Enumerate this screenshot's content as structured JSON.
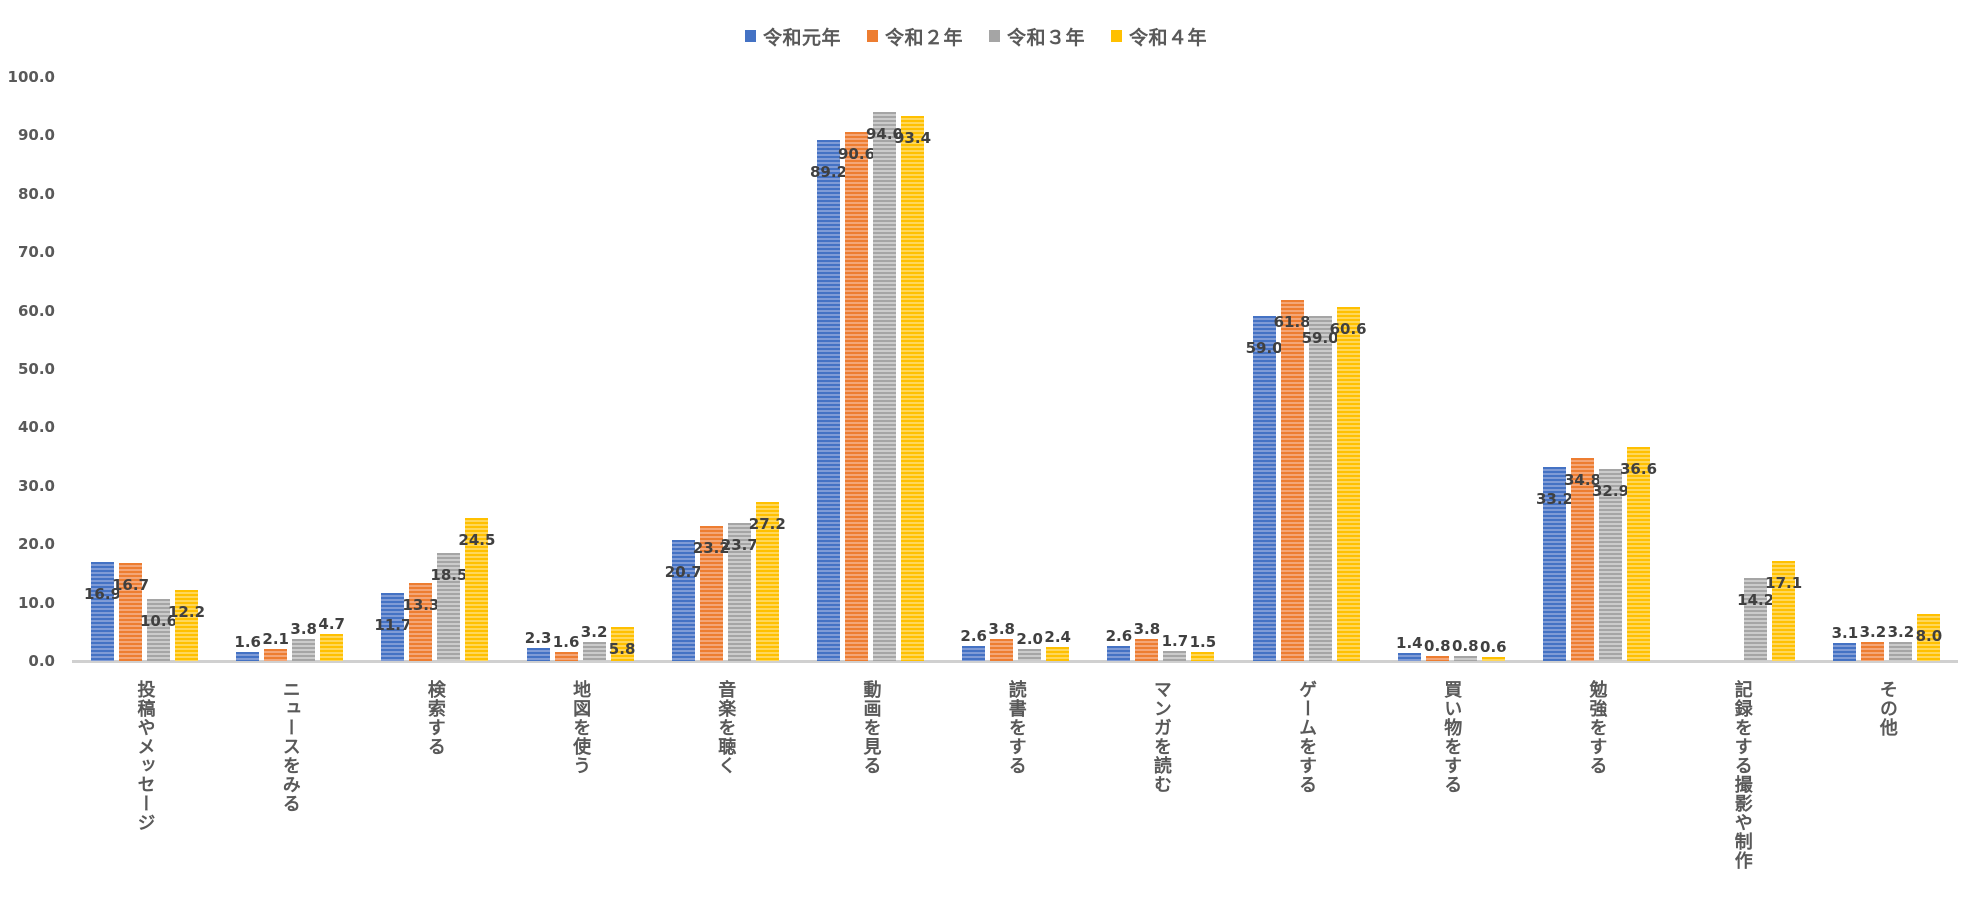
{
  "legend": {
    "items": [
      {
        "label": "令和元年",
        "color": "#4472C4"
      },
      {
        "label": "令和２年",
        "color": "#ED7D31"
      },
      {
        "label": "令和３年",
        "color": "#A5A5A5"
      },
      {
        "label": "令和４年",
        "color": "#FFC000"
      }
    ]
  },
  "yaxis": {
    "ticks": [
      "0.0",
      "10.0",
      "20.0",
      "30.0",
      "40.0",
      "50.0",
      "60.0",
      "70.0",
      "80.0",
      "90.0",
      "100.0"
    ]
  },
  "chart_data": {
    "type": "bar",
    "title": "",
    "xlabel": "",
    "ylabel": "",
    "ylim": [
      0,
      100
    ],
    "grid": false,
    "legend_position": "top",
    "categories": [
      "投稿やメッセージ",
      "ニュースをみる",
      "検索する",
      "地図を使う",
      "音楽を聴く",
      "動画を見る",
      "読書をする",
      "マンガを読む",
      "ゲームをする",
      "買い物をする",
      "勉強をする",
      "記録をする撮影や制作",
      "その他"
    ],
    "series": [
      {
        "name": "令和元年",
        "color": "#4472C4",
        "values": [
          16.9,
          1.6,
          11.7,
          2.3,
          20.7,
          89.2,
          2.6,
          2.6,
          59.0,
          1.4,
          33.2,
          null,
          3.1
        ]
      },
      {
        "name": "令和２年",
        "color": "#ED7D31",
        "values": [
          16.7,
          2.1,
          13.3,
          1.6,
          23.2,
          90.6,
          3.8,
          3.8,
          61.8,
          0.8,
          34.8,
          null,
          3.2
        ]
      },
      {
        "name": "令和３年",
        "color": "#A5A5A5",
        "values": [
          10.6,
          3.8,
          18.5,
          3.2,
          23.7,
          94.0,
          2.0,
          1.7,
          59.0,
          0.8,
          32.9,
          14.2,
          3.2
        ]
      },
      {
        "name": "令和４年",
        "color": "#FFC000",
        "values": [
          12.2,
          4.7,
          24.5,
          5.8,
          27.2,
          93.4,
          2.4,
          1.5,
          60.6,
          0.6,
          36.6,
          17.1,
          8.0
        ]
      }
    ]
  }
}
